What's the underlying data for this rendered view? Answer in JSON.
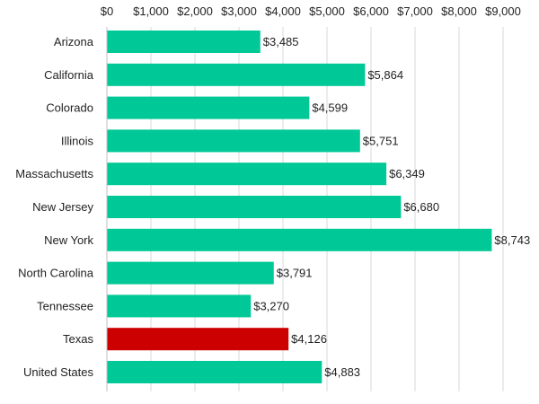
{
  "chart_data": {
    "type": "bar",
    "orientation": "horizontal",
    "title": "",
    "xlabel": "",
    "ylabel": "",
    "categories": [
      "Arizona",
      "California",
      "Colorado",
      "Illinois",
      "Massachusetts",
      "New Jersey",
      "New York",
      "North Carolina",
      "Tennessee",
      "Texas",
      "United States"
    ],
    "values": [
      3485,
      5864,
      4599,
      5751,
      6349,
      6680,
      8743,
      3791,
      3270,
      4126,
      4883
    ],
    "value_labels": [
      "$3,485",
      "$5,864",
      "$4,599",
      "$5,751",
      "$6,349",
      "$6,680",
      "$8,743",
      "$3,791",
      "$3,270",
      "$4,126",
      "$4,883"
    ],
    "xlim": [
      0,
      9000
    ],
    "x_ticks": [
      0,
      1000,
      2000,
      3000,
      4000,
      5000,
      6000,
      7000,
      8000,
      9000
    ],
    "x_tick_labels": [
      "$0",
      "$1,000",
      "$2,000",
      "$3,000",
      "$4,000",
      "$5,000",
      "$6,000",
      "$7,000",
      "$8,000",
      "$9,000"
    ],
    "x_axis_position": "top",
    "grid": true,
    "legend": "none",
    "colors": {
      "default_bar": "#00c896",
      "highlight_bar": "#cc0000"
    },
    "highlighted_category": "Texas"
  }
}
